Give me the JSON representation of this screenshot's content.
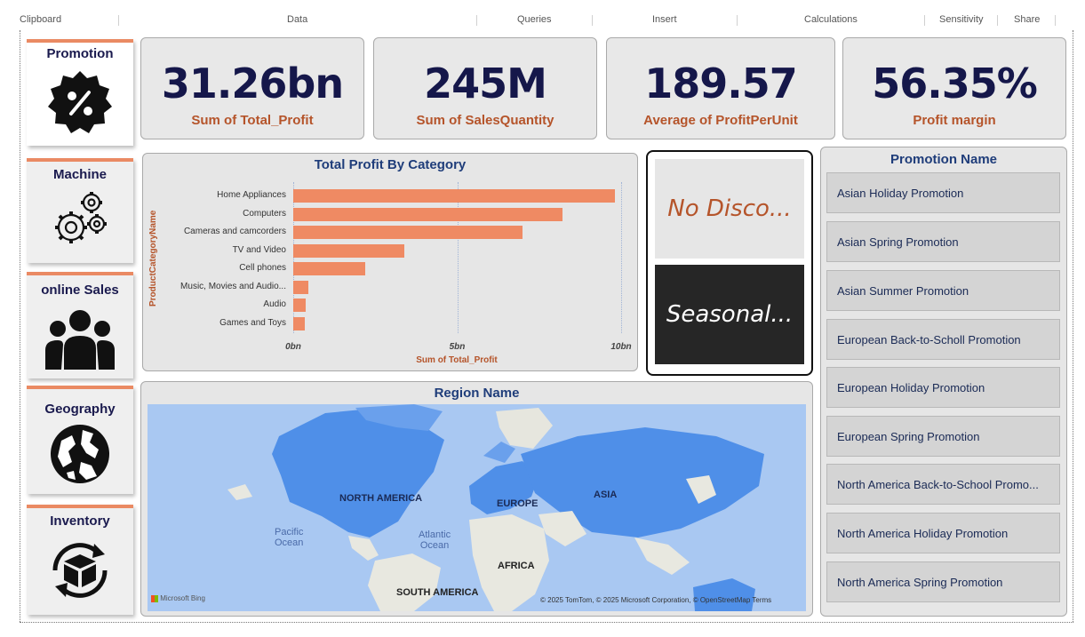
{
  "ribbon": {
    "groups": [
      "Clipboard",
      "Data",
      "Queries",
      "Insert",
      "Calculations",
      "Sensitivity",
      "Share"
    ]
  },
  "nav": {
    "items": [
      {
        "label": "Promotion",
        "icon": "percent-badge-icon",
        "active": true
      },
      {
        "label": "Machine",
        "icon": "gears-icon",
        "active": false
      },
      {
        "label": "online Sales",
        "icon": "users-group-icon",
        "active": false
      },
      {
        "label": "Geography",
        "icon": "globe-icon",
        "active": false
      },
      {
        "label": "Inventory",
        "icon": "box-cycle-icon",
        "active": false
      }
    ]
  },
  "kpis": [
    {
      "value": "31.26bn",
      "label": "Sum of Total_Profit"
    },
    {
      "value": "245M",
      "label": "Sum of SalesQuantity"
    },
    {
      "value": "189.57",
      "label": "Average of ProfitPerUnit"
    },
    {
      "value": "56.35%",
      "label": "Profit margin"
    }
  ],
  "chart_data": {
    "type": "bar",
    "orientation": "horizontal",
    "title": "Total Profit By Category",
    "xlabel": "Sum of Total_Profit",
    "ylabel": "ProductCategoryName",
    "categories": [
      "Home Appliances",
      "Computers",
      "Cameras and camcorders",
      "TV and Video",
      "Cell phones",
      "Music, Movies and Audio...",
      "Audio",
      "Games and Toys"
    ],
    "values": [
      9.8,
      8.2,
      7.0,
      3.4,
      2.2,
      0.45,
      0.38,
      0.35
    ],
    "xticks": [
      "0bn",
      "5bn",
      "10bn"
    ],
    "xlim": [
      0,
      10
    ],
    "grid": true,
    "bar_color": "#ef8a63"
  },
  "slicer": {
    "options": [
      {
        "label": "No Disco...",
        "bg": "#e6e6e6",
        "fg": "#b5542a"
      },
      {
        "label": "Seasonal...",
        "bg": "#262626",
        "fg": "#ffffff"
      }
    ]
  },
  "promotion_list": {
    "title": "Promotion Name",
    "items": [
      "Asian Holiday Promotion",
      "Asian Spring Promotion",
      "Asian Summer Promotion",
      "European Back-to-Scholl Promotion",
      "European Holiday Promotion",
      "European Spring Promotion",
      "North America Back-to-School Promo...",
      "North America Holiday Promotion",
      "North America Spring Promotion"
    ]
  },
  "map": {
    "title": "Region Name",
    "labels": [
      "NORTH AMERICA",
      "EUROPE",
      "ASIA",
      "AFRICA",
      "SOUTH AMERICA"
    ],
    "oceans": [
      "Pacific\nOcean",
      "Atlantic\nOcean"
    ],
    "attribution": "© 2025 TomTom, © 2025 Microsoft Corporation, © OpenStreetMap  Terms",
    "brand": "Microsoft Bing",
    "colors": {
      "water": "#a9c8f2",
      "land": "#e8e8e0",
      "highlight": "#4f8fe8"
    }
  },
  "colors": {
    "accent": "#ea8a63",
    "kpi_value": "#15174a",
    "kpi_label": "#b5542a",
    "title_blue": "#1f3d7a"
  }
}
